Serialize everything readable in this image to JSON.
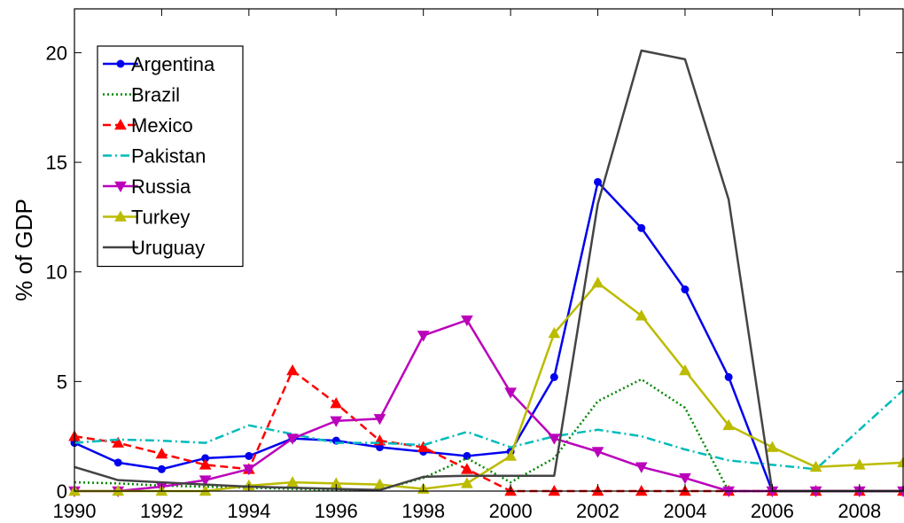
{
  "chart_data": {
    "type": "line",
    "title": "",
    "xlabel": "",
    "ylabel": "% of GDP",
    "xlim": [
      1990,
      2009
    ],
    "ylim": [
      0,
      22
    ],
    "x_ticks": [
      1990,
      1992,
      1994,
      1996,
      1998,
      2000,
      2002,
      2004,
      2006,
      2008
    ],
    "y_ticks": [
      0,
      5,
      10,
      15,
      20
    ],
    "grid": false,
    "legend_position": "top-left",
    "x": [
      1990,
      1991,
      1992,
      1993,
      1994,
      1995,
      1996,
      1997,
      1998,
      1999,
      2000,
      2001,
      2002,
      2003,
      2004,
      2005,
      2006,
      2007,
      2008,
      2009
    ],
    "series": [
      {
        "name": "Argentina",
        "color": "#0000ee",
        "style": "solid",
        "marker": "circle",
        "values": [
          2.2,
          1.3,
          1.0,
          1.5,
          1.6,
          2.4,
          2.3,
          2.0,
          1.8,
          1.6,
          1.8,
          5.2,
          14.1,
          12.0,
          9.2,
          5.2,
          0,
          0,
          0,
          0
        ]
      },
      {
        "name": "Brazil",
        "color": "#008800",
        "style": "dotted",
        "marker": "none",
        "values": [
          0.4,
          0.35,
          0.25,
          0.2,
          0.15,
          0.1,
          0.05,
          0.05,
          0.6,
          1.5,
          0.4,
          1.5,
          4.1,
          5.1,
          3.8,
          0,
          0,
          0,
          0,
          0
        ]
      },
      {
        "name": "Mexico",
        "color": "#ff0000",
        "style": "dashed",
        "marker": "triangle-up",
        "values": [
          2.5,
          2.2,
          1.7,
          1.2,
          1.0,
          5.5,
          4.0,
          2.3,
          2.0,
          1.0,
          0,
          0,
          0,
          0,
          0,
          0,
          0,
          0,
          0,
          0
        ]
      },
      {
        "name": "Pakistan",
        "color": "#00bbbb",
        "style": "dashdot",
        "marker": "none",
        "values": [
          2.2,
          2.35,
          2.3,
          2.2,
          3.0,
          2.6,
          2.2,
          2.2,
          2.1,
          2.7,
          2.0,
          2.5,
          2.8,
          2.5,
          1.9,
          1.4,
          1.2,
          1.0,
          2.8,
          4.6
        ]
      },
      {
        "name": "Russia",
        "color": "#bb00bb",
        "style": "solid",
        "marker": "triangle-down",
        "values": [
          0,
          0,
          0.2,
          0.5,
          1.0,
          2.4,
          3.2,
          3.3,
          7.1,
          7.8,
          4.5,
          2.4,
          1.8,
          1.1,
          0.6,
          0,
          0,
          0,
          0,
          0
        ]
      },
      {
        "name": "Turkey",
        "color": "#bbbb00",
        "style": "solid",
        "marker": "triangle-up",
        "values": [
          0,
          0,
          0,
          0,
          0.25,
          0.4,
          0.35,
          0.3,
          0.1,
          0.35,
          1.6,
          7.2,
          9.5,
          8.0,
          5.5,
          3.0,
          2.0,
          1.1,
          1.2,
          1.3
        ]
      },
      {
        "name": "Uruguay",
        "color": "#444444",
        "style": "solid",
        "marker": "none",
        "values": [
          1.1,
          0.5,
          0.4,
          0.3,
          0.2,
          0.15,
          0.1,
          0.05,
          0.65,
          0.7,
          0.7,
          0.7,
          13.1,
          20.1,
          19.7,
          13.3,
          0,
          0,
          0,
          0
        ]
      }
    ]
  }
}
